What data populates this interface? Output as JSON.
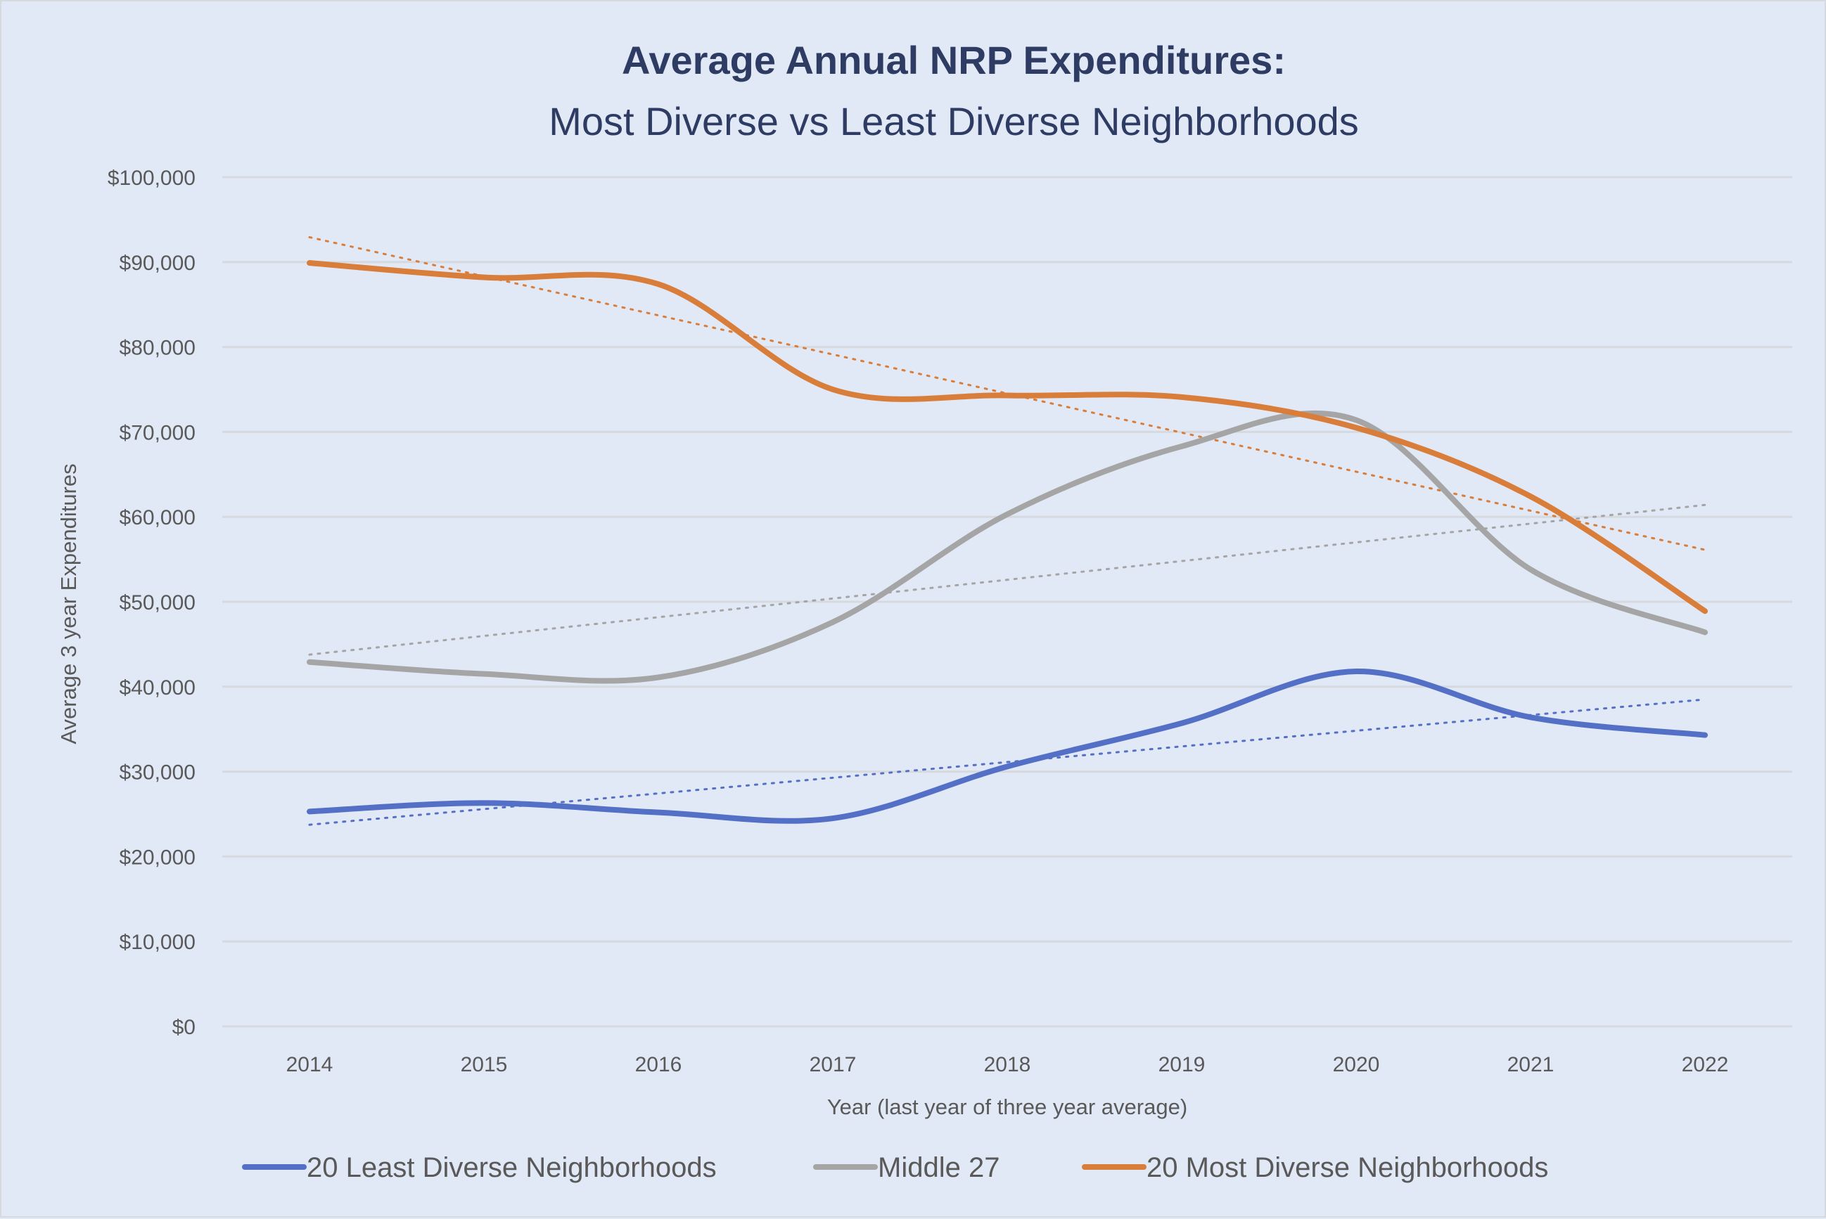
{
  "chart_data": {
    "type": "line",
    "title": "Average Annual NRP Expenditures:",
    "subtitle": "Most Diverse vs Least Diverse Neighborhoods",
    "xlabel": "Year (last year of three year average)",
    "ylabel": "Average 3 year Expenditures",
    "categories": [
      "2014",
      "2015",
      "2016",
      "2017",
      "2018",
      "2019",
      "2020",
      "2021",
      "2022"
    ],
    "ylim": [
      0,
      100000
    ],
    "yticks": [
      0,
      10000,
      20000,
      30000,
      40000,
      50000,
      60000,
      70000,
      80000,
      90000,
      100000
    ],
    "ytick_labels": [
      "$0",
      "$10,000",
      "$20,000",
      "$30,000",
      "$40,000",
      "$50,000",
      "$60,000",
      "$70,000",
      "$80,000",
      "$90,000",
      "$100,000"
    ],
    "grid": "horizontal",
    "smoothed": true,
    "legend_position": "bottom",
    "series": [
      {
        "name": "20 Least Diverse Neighborhoods",
        "color": "#5470c6",
        "values": [
          25300,
          26300,
          25200,
          24500,
          30600,
          35700,
          41800,
          36400,
          34300
        ],
        "trendline": "linear"
      },
      {
        "name": "Middle 27",
        "color": "#a5a5a5",
        "values": [
          42900,
          41500,
          41100,
          47600,
          60300,
          68300,
          71400,
          53800,
          46400
        ],
        "trendline": "linear"
      },
      {
        "name": "20 Most Diverse Neighborhoods",
        "color": "#d97d3a",
        "values": [
          89900,
          88200,
          87400,
          75000,
          74300,
          74100,
          70500,
          62400,
          48900
        ],
        "trendline": "linear"
      }
    ]
  }
}
